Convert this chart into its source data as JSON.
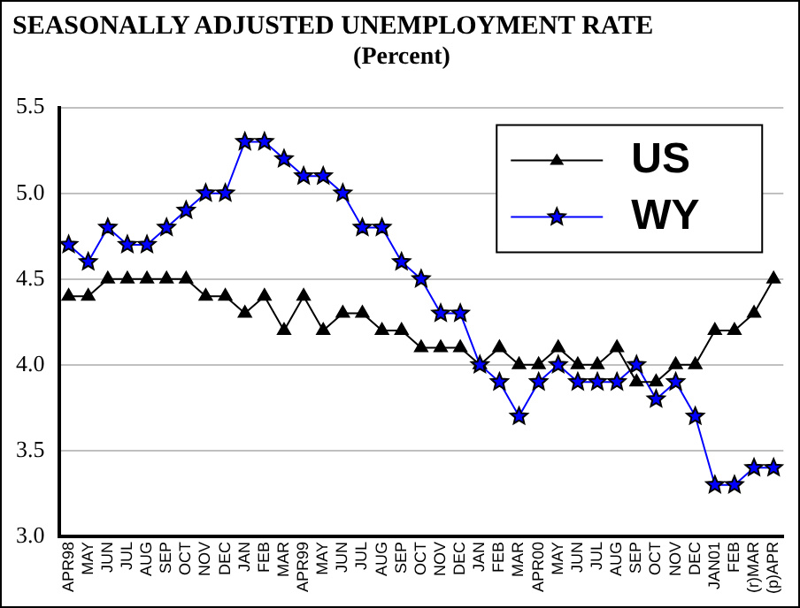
{
  "chart_data": {
    "type": "line",
    "title": "SEASONALLY ADJUSTED UNEMPLOYMENT RATE",
    "subtitle": "(Percent)",
    "categories": [
      "APR98",
      "MAY",
      "JUN",
      "JUL",
      "AUG",
      "SEP",
      "OCT",
      "NOV",
      "DEC",
      "JAN",
      "FEB",
      "MAR",
      "APR99",
      "MAY",
      "JUN",
      "JUL",
      "AUG",
      "SEP",
      "OCT",
      "NOV",
      "DEC",
      "JAN",
      "FEB",
      "MAR",
      "APR00",
      "MAY",
      "JUN",
      "JUL",
      "AUG",
      "SEP",
      "OCT",
      "NOV",
      "DEC",
      "JAN01",
      "FEB",
      "(r)MAR",
      "(p)APR"
    ],
    "series": [
      {
        "name": "US",
        "color": "#000000",
        "marker": "triangle",
        "values": [
          4.4,
          4.4,
          4.5,
          4.5,
          4.5,
          4.5,
          4.5,
          4.4,
          4.4,
          4.3,
          4.4,
          4.2,
          4.4,
          4.2,
          4.3,
          4.3,
          4.2,
          4.2,
          4.1,
          4.1,
          4.1,
          4.0,
          4.1,
          4.0,
          4.0,
          4.1,
          4.0,
          4.0,
          4.1,
          3.9,
          3.9,
          4.0,
          4.0,
          4.2,
          4.2,
          4.3,
          4.5
        ]
      },
      {
        "name": "WY",
        "color": "#0000ff",
        "marker": "star",
        "values": [
          4.7,
          4.6,
          4.8,
          4.7,
          4.7,
          4.8,
          4.9,
          5.0,
          5.0,
          5.3,
          5.3,
          5.2,
          5.1,
          5.1,
          5.0,
          4.8,
          4.8,
          4.6,
          4.5,
          4.3,
          4.3,
          4.0,
          3.9,
          3.7,
          3.9,
          4.0,
          3.9,
          3.9,
          3.9,
          4.0,
          3.8,
          3.9,
          3.7,
          3.3,
          3.3,
          3.4,
          3.4
        ]
      }
    ],
    "ylim": [
      3.0,
      5.5
    ],
    "yticks": [
      {
        "value": 3.0,
        "label": "3.0"
      },
      {
        "value": 3.5,
        "label": "3.5"
      },
      {
        "value": 4.0,
        "label": "4.0"
      },
      {
        "value": 4.5,
        "label": "4.5"
      },
      {
        "value": 5.0,
        "label": "5.0"
      },
      {
        "value": 5.5,
        "label": "5.5"
      }
    ],
    "grid": "y",
    "legend": "top right"
  }
}
